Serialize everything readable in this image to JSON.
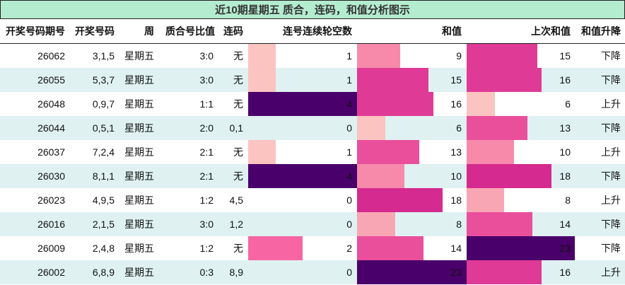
{
  "title": "近10期星期五 质合，连码，和值分析图示",
  "headers": {
    "issue": "开奖号码期号",
    "numbers": "开奖号码",
    "weekday": "周",
    "prime_ratio": "质合号比值",
    "consecutive": "连码",
    "consecutive_gap": "连号连续轮空数",
    "sum": "和值",
    "prev_sum": "上次和值",
    "trend": "和值升降"
  },
  "colors": {
    "title_bg": "#b4ecd0",
    "row_alt_bg": "#dff1f1",
    "bar_scale": [
      "#fbc4c1",
      "#f9a6b4",
      "#f78aaa",
      "#f066a5",
      "#ea4f9c",
      "#df3a95",
      "#d52a8f",
      "#c21785",
      "#a2037c",
      "#4a006a"
    ]
  },
  "rows": [
    {
      "issue": "26062",
      "numbers": "3,1,5",
      "weekday": "星期五",
      "prime_ratio": "3:0",
      "consecutive": "无",
      "gap": "1",
      "sum": "9",
      "prev_sum": "15",
      "trend": "下降"
    },
    {
      "issue": "26055",
      "numbers": "5,3,7",
      "weekday": "星期五",
      "prime_ratio": "3:0",
      "consecutive": "无",
      "gap": "1",
      "sum": "15",
      "prev_sum": "16",
      "trend": "下降"
    },
    {
      "issue": "26048",
      "numbers": "0,9,7",
      "weekday": "星期五",
      "prime_ratio": "1:1",
      "consecutive": "无",
      "gap": "4",
      "sum": "16",
      "prev_sum": "6",
      "trend": "上升"
    },
    {
      "issue": "26044",
      "numbers": "0,5,1",
      "weekday": "星期五",
      "prime_ratio": "2:0",
      "consecutive": "0,1",
      "gap": "0",
      "sum": "6",
      "prev_sum": "13",
      "trend": "下降"
    },
    {
      "issue": "26037",
      "numbers": "7,2,4",
      "weekday": "星期五",
      "prime_ratio": "2:1",
      "consecutive": "无",
      "gap": "1",
      "sum": "13",
      "prev_sum": "10",
      "trend": "上升"
    },
    {
      "issue": "26030",
      "numbers": "8,1,1",
      "weekday": "星期五",
      "prime_ratio": "2:1",
      "consecutive": "无",
      "gap": "4",
      "sum": "10",
      "prev_sum": "18",
      "trend": "下降"
    },
    {
      "issue": "26023",
      "numbers": "4,9,5",
      "weekday": "星期五",
      "prime_ratio": "1:2",
      "consecutive": "4,5",
      "gap": "0",
      "sum": "18",
      "prev_sum": "8",
      "trend": "上升"
    },
    {
      "issue": "26016",
      "numbers": "2,1,5",
      "weekday": "星期五",
      "prime_ratio": "3:0",
      "consecutive": "1,2",
      "gap": "0",
      "sum": "8",
      "prev_sum": "14",
      "trend": "下降"
    },
    {
      "issue": "26009",
      "numbers": "2,4,8",
      "weekday": "星期五",
      "prime_ratio": "1:2",
      "consecutive": "无",
      "gap": "2",
      "sum": "14",
      "prev_sum": "23",
      "trend": "下降"
    },
    {
      "issue": "26002",
      "numbers": "6,8,9",
      "weekday": "星期五",
      "prime_ratio": "0:3",
      "consecutive": "8,9",
      "gap": "0",
      "sum": "23",
      "prev_sum": "16",
      "trend": "上升"
    }
  ]
}
